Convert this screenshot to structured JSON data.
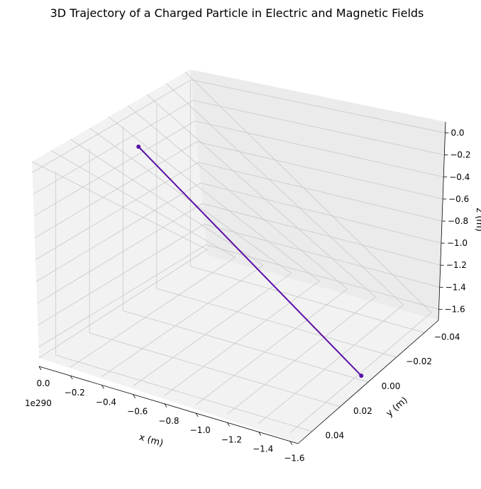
{
  "chart_data": {
    "type": "line3d",
    "title": "3D Trajectory of a Charged Particle in Electric and Magnetic Fields",
    "xlabel": "x (m)",
    "ylabel": "y (m)",
    "zlabel": "z (m)",
    "x_offset_label": "1e290",
    "x_ticks": [
      "0.0",
      "−0.2",
      "−0.4",
      "−0.6",
      "−0.8",
      "−1.0",
      "−1.2",
      "−1.4",
      "−1.6"
    ],
    "y_ticks": [
      "−0.04",
      "−0.02",
      "0.00",
      "0.02",
      "0.04"
    ],
    "z_ticks": [
      "0.0",
      "−0.2",
      "−0.4",
      "−0.6",
      "−0.8",
      "−1.0",
      "−1.2",
      "−1.4",
      "−1.6"
    ],
    "xlim": [
      0.0,
      -1.65
    ],
    "ylim": [
      0.05,
      -0.05
    ],
    "zlim": [
      -1.7,
      0.1
    ],
    "grid": true,
    "series": [
      {
        "color": "#5b0fa6",
        "x": [
          0.0,
          -1.6
        ],
        "y": [
          0.0,
          0.0
        ],
        "z": [
          0.0,
          -1.7
        ],
        "markers": true
      }
    ]
  }
}
